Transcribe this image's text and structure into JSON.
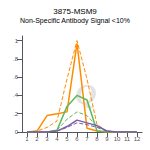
{
  "chart_data": {
    "type": "line",
    "title": "3875-MSM9",
    "subtitle": "Non-Specific Antibody Signal <10%",
    "x": [
      1,
      2,
      3,
      4,
      5,
      6,
      7,
      8,
      9,
      10,
      11,
      12
    ],
    "series": [
      {
        "color": "#FF8C00",
        "line_style": "dashed",
        "values": [
          0.0,
          0.01,
          0.05,
          0.12,
          0.58,
          1.0,
          0.58,
          0.08,
          0.01,
          0.0,
          0.0,
          0.0
        ]
      },
      {
        "color": "#FF8C00",
        "line_style": "solid",
        "values": [
          0.0,
          0.01,
          0.18,
          0.2,
          0.22,
          0.97,
          0.04,
          0.01,
          0.0,
          0.0,
          0.0,
          0.0
        ]
      },
      {
        "color": "#5CB85C",
        "line_style": "dashed",
        "values": [
          0.0,
          0.0,
          0.0,
          0.02,
          0.14,
          0.22,
          0.18,
          0.06,
          0.01,
          0.0,
          0.0,
          0.0
        ]
      },
      {
        "color": "#5CB85C",
        "line_style": "solid",
        "values": [
          0.0,
          0.0,
          0.0,
          0.02,
          0.28,
          0.4,
          0.35,
          0.01,
          0.0,
          0.0,
          0.0,
          0.0
        ]
      },
      {
        "color": "#7B5EA7",
        "line_style": "dashed",
        "values": [
          0.0,
          0.0,
          0.0,
          0.01,
          0.05,
          0.1,
          0.08,
          0.05,
          0.01,
          0.0,
          0.0,
          0.0
        ]
      },
      {
        "color": "#7B5EA7",
        "line_style": "solid",
        "values": [
          0.0,
          0.0,
          0.0,
          0.01,
          0.06,
          0.13,
          0.1,
          0.07,
          0.01,
          0.0,
          0.0,
          0.0
        ]
      }
    ],
    "xlim": [
      0.5,
      12.5
    ],
    "xticks": [
      1,
      2,
      3,
      4,
      5,
      6,
      7,
      8,
      9,
      10,
      11,
      12
    ],
    "ylim": [
      0,
      1.05
    ],
    "yticks": [
      0,
      {
        "value": 0.2,
        "label": ".2"
      },
      {
        "value": 0.4,
        "label": ".4"
      },
      {
        "value": 0.6,
        "label": ".6"
      },
      {
        "value": 0.8,
        "label": ".8"
      },
      1
    ],
    "annotations": [
      {
        "text": "Q",
        "color": "#D0D0D0"
      }
    ],
    "grid": false,
    "legend": false
  }
}
